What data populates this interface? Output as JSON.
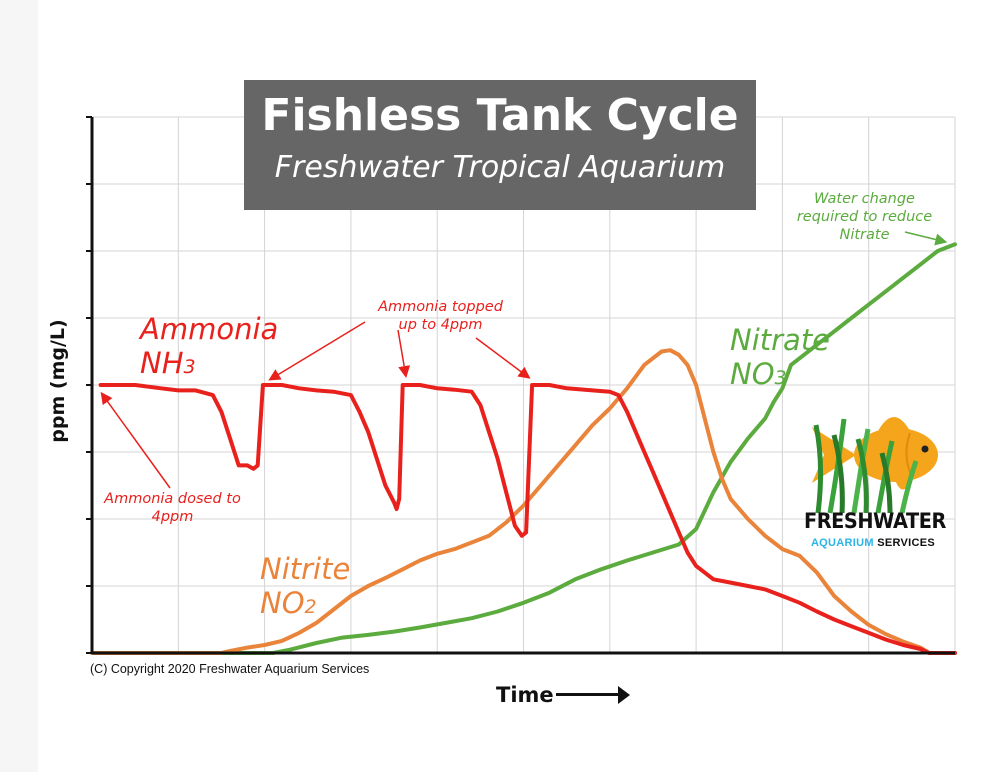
{
  "title": "Fishless Tank Cycle",
  "subtitle": "Freshwater Tropical Aquarium",
  "colors": {
    "ammonia": "#e8211d",
    "nitrite": "#e9843a",
    "nitrate": "#5cab3f",
    "title_box": "#666666"
  },
  "copyright": "(C) Copyright 2020 Freshwater Aquarium Services",
  "logo": {
    "word": "FRESHWATER",
    "sub_a": "AQUARIUM",
    "sub_b": "SERVICES",
    "icon": "goldfish-in-grass-icon"
  },
  "chart_data": {
    "type": "line",
    "ylabel": "ppm (mg/L)",
    "xlabel": "Time",
    "grid": true,
    "ylim": [
      0,
      8
    ],
    "xlim": [
      0,
      100
    ],
    "series": [
      {
        "name": "Ammonia",
        "formula_prefix": "NH",
        "formula_sub": "3",
        "points": [
          [
            1,
            4.0
          ],
          [
            5,
            4.0
          ],
          [
            8,
            3.95
          ],
          [
            10,
            3.92
          ],
          [
            12,
            3.92
          ],
          [
            14,
            3.85
          ],
          [
            15,
            3.6
          ],
          [
            16,
            3.2
          ],
          [
            17,
            2.8
          ],
          [
            18,
            2.8
          ],
          [
            18.7,
            2.75
          ],
          [
            19.2,
            2.8
          ],
          [
            19.8,
            4.0
          ],
          [
            22,
            4.0
          ],
          [
            24,
            3.95
          ],
          [
            26,
            3.92
          ],
          [
            28,
            3.9
          ],
          [
            30,
            3.85
          ],
          [
            31,
            3.6
          ],
          [
            32,
            3.3
          ],
          [
            33,
            2.9
          ],
          [
            34,
            2.5
          ],
          [
            35,
            2.25
          ],
          [
            35.3,
            2.15
          ],
          [
            35.6,
            2.3
          ],
          [
            36,
            4.0
          ],
          [
            38,
            4.0
          ],
          [
            40,
            3.95
          ],
          [
            42,
            3.93
          ],
          [
            44,
            3.9
          ],
          [
            45,
            3.7
          ],
          [
            46,
            3.3
          ],
          [
            47,
            2.9
          ],
          [
            48,
            2.4
          ],
          [
            49,
            1.9
          ],
          [
            49.8,
            1.75
          ],
          [
            50.3,
            1.8
          ],
          [
            51,
            4.0
          ],
          [
            53,
            4.0
          ],
          [
            55,
            3.95
          ],
          [
            58,
            3.92
          ],
          [
            60,
            3.9
          ],
          [
            61,
            3.85
          ],
          [
            62,
            3.6
          ],
          [
            63,
            3.3
          ],
          [
            64,
            3.0
          ],
          [
            65,
            2.7
          ],
          [
            66,
            2.4
          ],
          [
            67,
            2.1
          ],
          [
            68,
            1.8
          ],
          [
            69,
            1.5
          ],
          [
            70,
            1.3
          ],
          [
            71,
            1.2
          ],
          [
            72,
            1.1
          ],
          [
            74,
            1.05
          ],
          [
            76,
            1.0
          ],
          [
            78,
            0.95
          ],
          [
            80,
            0.85
          ],
          [
            82,
            0.75
          ],
          [
            84,
            0.62
          ],
          [
            86,
            0.5
          ],
          [
            88,
            0.4
          ],
          [
            90,
            0.3
          ],
          [
            92,
            0.2
          ],
          [
            94,
            0.12
          ],
          [
            96,
            0.06
          ],
          [
            97,
            0.0
          ],
          [
            100,
            0.0
          ]
        ]
      },
      {
        "name": "Nitrite",
        "formula_prefix": "NO",
        "formula_sub": "2",
        "points": [
          [
            0,
            0.0
          ],
          [
            15,
            0.0
          ],
          [
            16,
            0.03
          ],
          [
            18,
            0.08
          ],
          [
            20,
            0.12
          ],
          [
            22,
            0.18
          ],
          [
            24,
            0.3
          ],
          [
            26,
            0.45
          ],
          [
            28,
            0.65
          ],
          [
            30,
            0.85
          ],
          [
            32,
            1.0
          ],
          [
            34,
            1.12
          ],
          [
            36,
            1.25
          ],
          [
            38,
            1.38
          ],
          [
            40,
            1.48
          ],
          [
            42,
            1.55
          ],
          [
            44,
            1.65
          ],
          [
            46,
            1.75
          ],
          [
            48,
            1.95
          ],
          [
            50,
            2.2
          ],
          [
            52,
            2.5
          ],
          [
            54,
            2.8
          ],
          [
            56,
            3.1
          ],
          [
            58,
            3.4
          ],
          [
            60,
            3.65
          ],
          [
            62,
            3.95
          ],
          [
            64,
            4.3
          ],
          [
            66,
            4.5
          ],
          [
            67,
            4.52
          ],
          [
            68,
            4.45
          ],
          [
            69,
            4.3
          ],
          [
            70,
            4.0
          ],
          [
            71,
            3.5
          ],
          [
            72,
            3.0
          ],
          [
            73,
            2.6
          ],
          [
            74,
            2.3
          ],
          [
            76,
            2.0
          ],
          [
            78,
            1.75
          ],
          [
            80,
            1.55
          ],
          [
            82,
            1.45
          ],
          [
            84,
            1.2
          ],
          [
            86,
            0.85
          ],
          [
            88,
            0.62
          ],
          [
            90,
            0.42
          ],
          [
            92,
            0.28
          ],
          [
            94,
            0.17
          ],
          [
            96,
            0.08
          ],
          [
            97,
            0.0
          ],
          [
            100,
            0.0
          ]
        ]
      },
      {
        "name": "Nitrate",
        "formula_prefix": "NO",
        "formula_sub": "3",
        "points": [
          [
            0,
            0.0
          ],
          [
            21,
            0.0
          ],
          [
            23,
            0.05
          ],
          [
            26,
            0.15
          ],
          [
            29,
            0.23
          ],
          [
            32,
            0.27
          ],
          [
            35,
            0.32
          ],
          [
            38,
            0.38
          ],
          [
            41,
            0.45
          ],
          [
            44,
            0.52
          ],
          [
            47,
            0.62
          ],
          [
            50,
            0.75
          ],
          [
            53,
            0.9
          ],
          [
            56,
            1.1
          ],
          [
            59,
            1.25
          ],
          [
            62,
            1.38
          ],
          [
            65,
            1.5
          ],
          [
            68,
            1.62
          ],
          [
            70,
            1.85
          ],
          [
            72,
            2.4
          ],
          [
            74,
            2.85
          ],
          [
            76,
            3.2
          ],
          [
            78,
            3.5
          ],
          [
            79,
            3.75
          ],
          [
            80,
            3.95
          ],
          [
            81,
            4.3
          ],
          [
            82,
            4.4
          ],
          [
            84,
            4.6
          ],
          [
            86,
            4.8
          ],
          [
            88,
            5.0
          ],
          [
            90,
            5.2
          ],
          [
            92,
            5.4
          ],
          [
            94,
            5.6
          ],
          [
            96,
            5.8
          ],
          [
            98,
            6.0
          ],
          [
            100,
            6.1
          ]
        ]
      }
    ],
    "annotations": [
      {
        "id": "dosed",
        "text_lines": [
          "Ammonia dosed to",
          "4ppm"
        ]
      },
      {
        "id": "topped",
        "text_lines": [
          "Ammonia topped",
          "up to 4ppm"
        ]
      },
      {
        "id": "waterchange",
        "text_lines": [
          "Water change",
          "required to reduce",
          "Nitrate"
        ]
      }
    ]
  }
}
